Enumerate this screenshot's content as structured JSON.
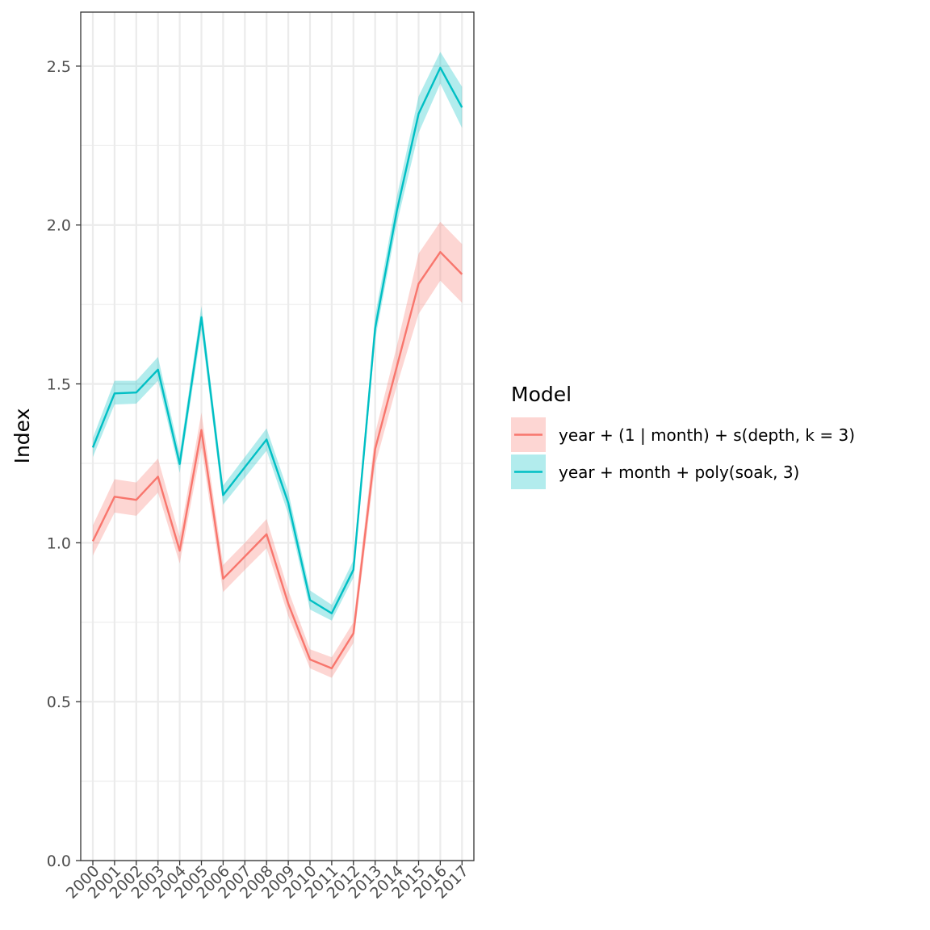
{
  "chart_data": {
    "type": "line",
    "title": "",
    "xlabel": "",
    "ylabel": "Index",
    "x": [
      "2000",
      "2001",
      "2002",
      "2003",
      "2004",
      "2005",
      "2006",
      "2007",
      "2008",
      "2009",
      "2010",
      "2011",
      "2012",
      "2013",
      "2014",
      "2015",
      "2016",
      "2017"
    ],
    "ylim": [
      0,
      2.67
    ],
    "y_ticks": [
      "0.0",
      "0.5",
      "1.0",
      "1.5",
      "2.0",
      "2.5"
    ],
    "grid": true,
    "legend": {
      "title": "Model",
      "position": "right"
    },
    "series": [
      {
        "name": "year + (1 | month) + s(depth, k = 3)",
        "color": "#F8766D",
        "fill": "#F8766D",
        "values": [
          1.005,
          1.145,
          1.135,
          1.208,
          0.975,
          1.355,
          0.887,
          0.957,
          1.027,
          0.808,
          0.633,
          0.605,
          0.715,
          1.295,
          1.555,
          1.815,
          1.915,
          1.845
        ],
        "lower": [
          0.96,
          1.095,
          1.085,
          1.158,
          0.935,
          1.3,
          0.845,
          0.915,
          0.983,
          0.77,
          0.605,
          0.575,
          0.685,
          1.245,
          1.495,
          1.72,
          1.825,
          1.755
        ],
        "upper": [
          1.055,
          1.2,
          1.19,
          1.265,
          1.02,
          1.41,
          0.93,
          1.0,
          1.075,
          0.85,
          0.665,
          0.64,
          0.75,
          1.345,
          1.62,
          1.91,
          2.01,
          1.94
        ]
      },
      {
        "name": "year + month + poly(soak, 3)",
        "color": "#00BFC4",
        "fill": "#00BFC4",
        "values": [
          1.3,
          1.47,
          1.473,
          1.545,
          1.248,
          1.71,
          1.15,
          1.238,
          1.325,
          1.125,
          0.82,
          0.778,
          0.915,
          1.675,
          2.045,
          2.35,
          2.495,
          2.37
        ],
        "lower": [
          1.27,
          1.435,
          1.438,
          1.51,
          1.22,
          1.67,
          1.12,
          1.205,
          1.29,
          1.09,
          0.79,
          0.755,
          0.89,
          1.64,
          2.005,
          2.29,
          2.445,
          2.305
        ],
        "upper": [
          1.33,
          1.51,
          1.51,
          1.585,
          1.28,
          1.745,
          1.18,
          1.27,
          1.36,
          1.16,
          0.85,
          0.805,
          0.945,
          1.715,
          2.09,
          2.405,
          2.545,
          2.435
        ]
      }
    ]
  }
}
